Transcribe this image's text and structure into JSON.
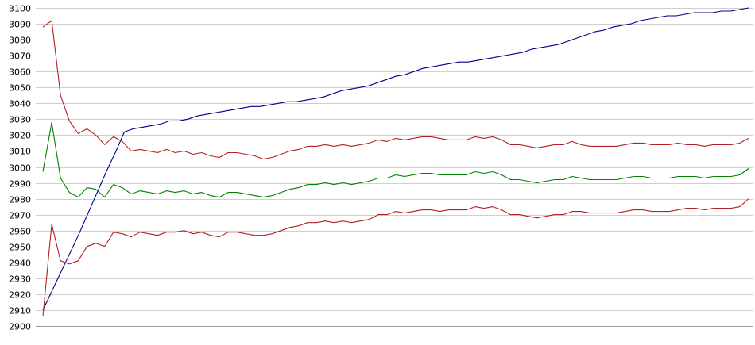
{
  "chart_data": {
    "type": "line",
    "title": "",
    "xlabel": "",
    "ylabel": "",
    "ylim": [
      2900,
      3100
    ],
    "yticks": [
      2900,
      2910,
      2920,
      2930,
      2940,
      2950,
      2960,
      2970,
      2980,
      2990,
      3000,
      3010,
      3020,
      3030,
      3040,
      3050,
      3060,
      3070,
      3080,
      3090,
      3100
    ],
    "grid": true,
    "legend": "none",
    "series": [
      {
        "color": "#00008b",
        "values": [
          2910,
          2922,
          2934,
          2946,
          2958,
          2971,
          2984,
          2997,
          3009,
          3022,
          3024,
          3025,
          3026,
          3027,
          3029,
          3029,
          3030,
          3032,
          3033,
          3034,
          3035,
          3036,
          3037,
          3038,
          3038,
          3039,
          3040,
          3041,
          3041,
          3042,
          3043,
          3044,
          3046,
          3048,
          3049,
          3050,
          3051,
          3053,
          3055,
          3057,
          3058,
          3060,
          3062,
          3063,
          3064,
          3065,
          3066,
          3066,
          3067,
          3068,
          3069,
          3070,
          3071,
          3072,
          3074,
          3075,
          3076,
          3077,
          3079,
          3081,
          3083,
          3085,
          3086,
          3088,
          3089,
          3090,
          3092,
          3093,
          3094,
          3095,
          3095,
          3096,
          3097,
          3097,
          3097,
          3098,
          3098,
          3099,
          3100
        ]
      },
      {
        "color": "#b22222",
        "values": [
          3088,
          3092,
          3045,
          3029,
          3021,
          3024,
          3020,
          3014,
          3019,
          3016,
          3010,
          3011,
          3010,
          3009,
          3011,
          3009,
          3010,
          3008,
          3009,
          3007,
          3006,
          3009,
          3009,
          3008,
          3007,
          3005,
          3006,
          3008,
          3010,
          3011,
          3013,
          3013,
          3014,
          3013,
          3014,
          3013,
          3014,
          3015,
          3017,
          3016,
          3018,
          3017,
          3018,
          3019,
          3019,
          3018,
          3017,
          3017,
          3017,
          3019,
          3018,
          3019,
          3017,
          3014,
          3014,
          3013,
          3012,
          3013,
          3014,
          3014,
          3016,
          3014,
          3013,
          3013,
          3013,
          3013,
          3014,
          3015,
          3015,
          3014,
          3014,
          3014,
          3015,
          3014,
          3014,
          3013,
          3014,
          3014,
          3014,
          3015,
          3018
        ]
      },
      {
        "color": "#008000",
        "values": [
          2997,
          3028,
          2993,
          2984,
          2981,
          2987,
          2986,
          2981,
          2989,
          2987,
          2983,
          2985,
          2984,
          2983,
          2985,
          2984,
          2985,
          2983,
          2984,
          2982,
          2981,
          2984,
          2984,
          2983,
          2982,
          2981,
          2982,
          2984,
          2986,
          2987,
          2989,
          2989,
          2990,
          2989,
          2990,
          2989,
          2990,
          2991,
          2993,
          2993,
          2995,
          2994,
          2995,
          2996,
          2996,
          2995,
          2995,
          2995,
          2995,
          2997,
          2996,
          2997,
          2995,
          2992,
          2992,
          2991,
          2990,
          2991,
          2992,
          2992,
          2994,
          2993,
          2992,
          2992,
          2992,
          2992,
          2993,
          2994,
          2994,
          2993,
          2993,
          2993,
          2994,
          2994,
          2994,
          2993,
          2994,
          2994,
          2994,
          2995,
          2999
        ]
      },
      {
        "color": "#b22222",
        "values": [
          2906,
          2964,
          2941,
          2939,
          2941,
          2950,
          2952,
          2950,
          2959,
          2958,
          2956,
          2959,
          2958,
          2957,
          2959,
          2959,
          2960,
          2958,
          2959,
          2957,
          2956,
          2959,
          2959,
          2958,
          2957,
          2957,
          2958,
          2960,
          2962,
          2963,
          2965,
          2965,
          2966,
          2965,
          2966,
          2965,
          2966,
          2967,
          2970,
          2970,
          2972,
          2971,
          2972,
          2973,
          2973,
          2972,
          2973,
          2973,
          2973,
          2975,
          2974,
          2975,
          2973,
          2970,
          2970,
          2969,
          2968,
          2969,
          2970,
          2970,
          2972,
          2972,
          2971,
          2971,
          2971,
          2971,
          2972,
          2973,
          2973,
          2972,
          2972,
          2972,
          2973,
          2974,
          2974,
          2973,
          2974,
          2974,
          2974,
          2975,
          2980
        ]
      }
    ]
  }
}
